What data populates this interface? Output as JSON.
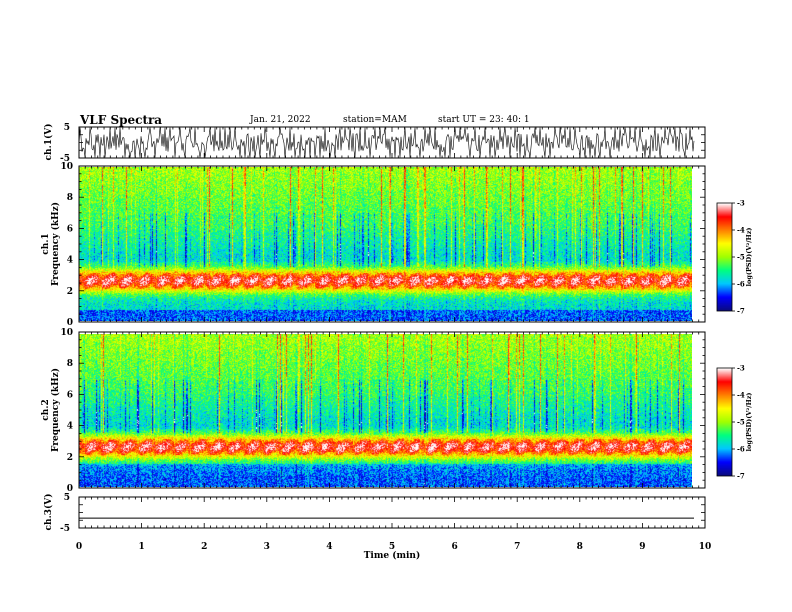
{
  "header": {
    "title": "VLF Spectra",
    "date": "Jan. 21, 2022",
    "station": "station=MAM",
    "start": "start  UT =  23: 40: 1"
  },
  "chart_data": [
    {
      "type": "line",
      "panel": "ch1-waveform",
      "ylabel": "ch.1(V)",
      "ylim": [
        -5,
        5
      ],
      "y_ticks": [
        "5",
        "-5"
      ],
      "description_values": "dense periodic spikes between -5 and 5 V"
    },
    {
      "type": "heatmap",
      "panel": "ch1-spectrogram",
      "ylabel": "ch.1 Frequency (kHz)",
      "ylim": [
        0,
        10
      ],
      "y_ticks": [
        "0",
        "2",
        "4",
        "6",
        "8",
        "10"
      ],
      "xlim": [
        0,
        10
      ],
      "band_center_khz": 2.6,
      "colorbar": {
        "label": "log(PSD)(V²/Hz)",
        "range": [
          -7,
          -3
        ],
        "ticks": [
          "-3",
          "-4",
          "-5",
          "-6",
          "-7"
        ]
      }
    },
    {
      "type": "heatmap",
      "panel": "ch2-spectrogram",
      "ylabel": "ch.2 Frequency (kHz)",
      "ylim": [
        0,
        10
      ],
      "y_ticks": [
        "0",
        "2",
        "4",
        "6",
        "8",
        "10"
      ],
      "xlim": [
        0,
        10
      ],
      "band_center_khz": 2.6,
      "colorbar": {
        "label": "log(PSD)(V²/Hz)",
        "range": [
          -7,
          -3
        ],
        "ticks": [
          "-3",
          "-4",
          "-5",
          "-6",
          "-7"
        ]
      }
    },
    {
      "type": "line",
      "panel": "ch3-waveform",
      "ylabel": "ch.3(V)",
      "ylim": [
        -5,
        5
      ],
      "y_ticks": [
        "5",
        "-5"
      ],
      "value": -1.8
    }
  ],
  "xaxis": {
    "label": "Time (min)",
    "ticks": [
      "0",
      "1",
      "2",
      "3",
      "4",
      "5",
      "6",
      "7",
      "8",
      "9",
      "10"
    ],
    "xlim": [
      0,
      10
    ],
    "data_end_min": 9.82
  },
  "colors": {
    "axis": "#000000",
    "colormap": [
      "#0a0a80",
      "#0000ff",
      "#00c8ff",
      "#00ff80",
      "#a0ff00",
      "#ffff00",
      "#ff8000",
      "#ff0000",
      "#ffffff"
    ]
  }
}
